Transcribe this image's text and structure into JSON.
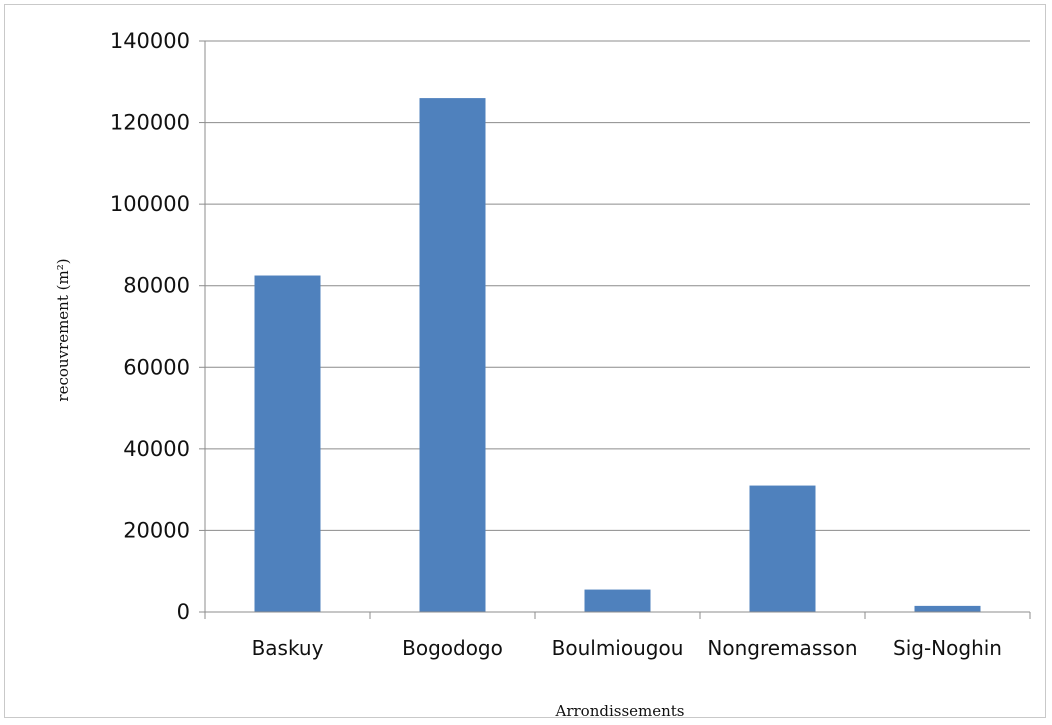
{
  "chart_data": {
    "type": "bar",
    "title": "",
    "xlabel": "Arrondissements",
    "ylabel": "recouvrement (m²)",
    "categories": [
      "Baskuy",
      "Bogodogo",
      "Boulmiougou",
      "Nongremasson",
      "Sig-Noghin"
    ],
    "values": [
      82500,
      126000,
      5500,
      31000,
      1500
    ],
    "ylim": [
      0,
      140000
    ],
    "yticks": [
      "0",
      "20000",
      "40000",
      "60000",
      "80000",
      "100000",
      "120000",
      "140000"
    ],
    "bar_color": "#4f81bd",
    "grid": true,
    "legend": "none"
  }
}
